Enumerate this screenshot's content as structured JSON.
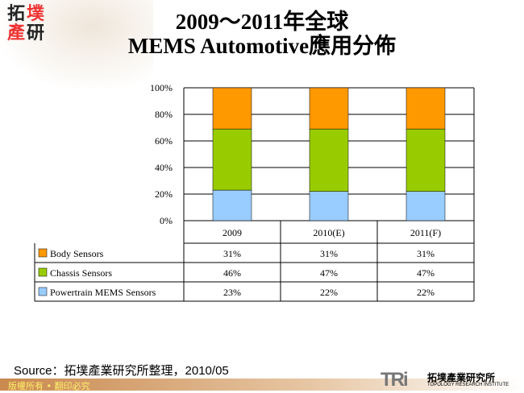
{
  "logo_text": "拓墣產研",
  "title_line1": "2009～2011年全球",
  "title_line2": "MEMS Automotive應用分佈",
  "source": "Source：拓墣產業研究所整理，2010/05",
  "footer": "版權所有 • 翻印必究",
  "institute_logo": {
    "mark": "TRi",
    "cn": "拓墣產業研究所",
    "en": "TOPOLOGY RESEARCH INSTITUTE"
  },
  "chart_data": {
    "type": "bar",
    "stacked": true,
    "percent": true,
    "categories": [
      "2009",
      "2010(E)",
      "2011(F)"
    ],
    "series": [
      {
        "name": "Powertrain MEMS Sensors",
        "values": [
          23,
          22,
          22
        ],
        "labels": [
          "23%",
          "22%",
          "22%"
        ],
        "color": "#99CCFF"
      },
      {
        "name": "Chassis Sensors",
        "values": [
          46,
          47,
          47
        ],
        "labels": [
          "46%",
          "47%",
          "47%"
        ],
        "color": "#99CC00"
      },
      {
        "name": "Body Sensors",
        "values": [
          31,
          31,
          31
        ],
        "labels": [
          "31%",
          "31%",
          "31%"
        ],
        "color": "#FF9900"
      }
    ],
    "ylim": [
      0,
      100
    ],
    "yticks": [
      "0%",
      "20%",
      "40%",
      "60%",
      "80%",
      "100%"
    ],
    "grid": true,
    "legend": "data-table"
  }
}
